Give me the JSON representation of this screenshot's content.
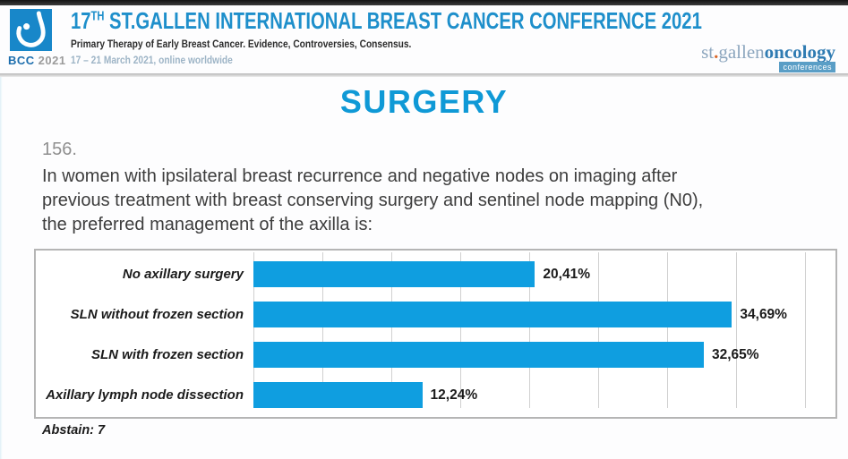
{
  "header": {
    "logo_text": "BCC",
    "logo_year": "2021",
    "title_num": "17",
    "title_sup": "TH",
    "title_rest": " ST.GALLEN INTERNATIONAL BREAST CANCER CONFERENCE 2021",
    "subtitle": "Primary Therapy of Early Breast Cancer. Evidence, Controversies, Consensus.",
    "dates": "17 – 21 March 2021, online worldwide",
    "brand_st": "st",
    "brand_dot": ".",
    "brand_gallen": "gallen",
    "brand_oncology": "oncology",
    "brand_badge": "conferences"
  },
  "section_title": "SURGERY",
  "question": {
    "number": "156.",
    "lines": [
      "In women with ipsilateral breast recurrence and negative nodes on imaging after",
      "previous treatment with breast conserving surgery and sentinel node mapping (N0),",
      "the preferred management of the axilla is:"
    ]
  },
  "chart_data": {
    "type": "bar",
    "orientation": "horizontal",
    "categories": [
      "No axillary surgery",
      "SLN without frozen section",
      "SLN with frozen section",
      "Axillary lymph node dissection"
    ],
    "values": [
      20.41,
      34.69,
      32.65,
      12.24
    ],
    "value_labels": [
      "20,41%",
      "34,69%",
      "32,65%",
      "12,24%"
    ],
    "xlim": [
      0,
      42
    ],
    "grid_step": 5,
    "grid": true,
    "legend": false,
    "bar_color": "#0f9ee0",
    "footnote": "Abstain: 7"
  },
  "colors": {
    "header_blue": "#1e8fcb",
    "section_blue": "#0f99d6",
    "bar_blue": "#0f9ee0",
    "date_gray_blue": "#9db4c6"
  }
}
